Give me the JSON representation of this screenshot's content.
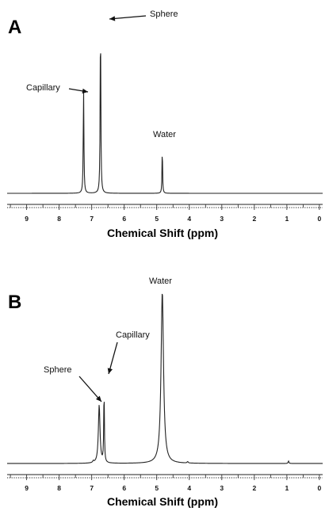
{
  "chart_data": [
    {
      "type": "line",
      "panel_label": "A",
      "xlabel": "Chemical Shift (ppm)",
      "ylabel": "",
      "x_reversed": true,
      "xlim": [
        9.6,
        -0.1
      ],
      "x_ticks": [
        9,
        8,
        7,
        6,
        5,
        4,
        3,
        2,
        1,
        0
      ],
      "grid": false,
      "peaks": [
        {
          "label": "Capillary",
          "x": 7.25,
          "height": 0.6,
          "width": 0.012
        },
        {
          "label": "Sphere",
          "x": 6.73,
          "height": 1.0,
          "width": 0.012
        },
        {
          "label": "Water",
          "x": 4.83,
          "height": 0.27,
          "width": 0.01
        }
      ]
    },
    {
      "type": "line",
      "panel_label": "B",
      "xlabel": "Chemical Shift (ppm)",
      "ylabel": "",
      "x_reversed": true,
      "xlim": [
        9.6,
        -0.1
      ],
      "x_ticks": [
        9,
        8,
        7,
        6,
        5,
        4,
        3,
        2,
        1,
        0
      ],
      "grid": false,
      "peaks": [
        {
          "label": "Sphere",
          "x": 6.77,
          "height": 0.34,
          "width": 0.03
        },
        {
          "label": "Capillary",
          "x": 6.62,
          "height": 0.42,
          "width": 0.012
        },
        {
          "label": "Water",
          "x": 4.83,
          "height": 1.0,
          "width": 0.045
        }
      ],
      "minor_peaks": [
        {
          "x": 4.05,
          "height": 0.008,
          "width": 0.02
        },
        {
          "x": 0.95,
          "height": 0.014,
          "width": 0.015
        },
        {
          "x": 6.95,
          "height": 0.01,
          "width": 0.02
        }
      ]
    }
  ]
}
